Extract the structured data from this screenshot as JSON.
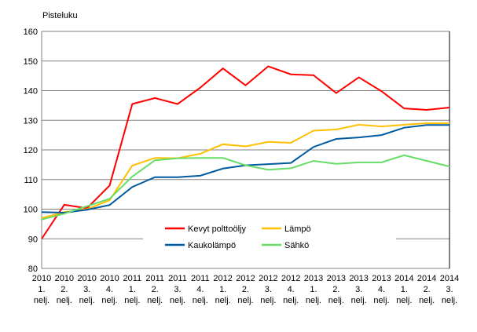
{
  "chart_data": {
    "type": "line",
    "ylabel": "Pisteluku",
    "ylim": [
      80,
      160
    ],
    "yticks": [
      80,
      90,
      100,
      110,
      120,
      130,
      140,
      150,
      160
    ],
    "grid": true,
    "legend_placement": "bottom-center",
    "categories": [
      [
        "2010",
        "1.",
        "nelj."
      ],
      [
        "2010",
        "2.",
        "nelj."
      ],
      [
        "2010",
        "3.",
        "nelj."
      ],
      [
        "2010",
        "4.",
        "nelj."
      ],
      [
        "2011",
        "1.",
        "nelj."
      ],
      [
        "2011",
        "2.",
        "nelj."
      ],
      [
        "2011",
        "3.",
        "nelj."
      ],
      [
        "2011",
        "4.",
        "nelj."
      ],
      [
        "2012",
        "1.",
        "nelj."
      ],
      [
        "2012",
        "2.",
        "nelj."
      ],
      [
        "2012",
        "3.",
        "nelj."
      ],
      [
        "2012",
        "4.",
        "nelj."
      ],
      [
        "2013",
        "1.",
        "nelj."
      ],
      [
        "2013",
        "2.",
        "nelj."
      ],
      [
        "2013",
        "3.",
        "nelj."
      ],
      [
        "2013",
        "4.",
        "nelj."
      ],
      [
        "2014",
        "1.",
        "nelj."
      ],
      [
        "2014",
        "2.",
        "nelj."
      ],
      [
        "2014",
        "3.",
        "nelj."
      ]
    ],
    "series": [
      {
        "name": "Kevyt polttoöljy",
        "color": "#ff0000",
        "values": [
          90,
          101.5,
          100.3,
          108,
          135.5,
          137.5,
          135.5,
          141,
          147.5,
          141.8,
          148.2,
          145.5,
          145.2,
          139.2,
          144.5,
          139.8,
          134,
          133.5,
          134.3
        ]
      },
      {
        "name": "Lämpö",
        "color": "#ffc000",
        "values": [
          97,
          99,
          100,
          103,
          114.7,
          117.3,
          117.2,
          118.7,
          121.9,
          121.2,
          122.7,
          122.4,
          126.5,
          126.9,
          128.5,
          127.9,
          128.5,
          129,
          129
        ]
      },
      {
        "name": "Kaukolämpö",
        "color": "#005aa0",
        "values": [
          99,
          98.8,
          99.8,
          101.4,
          107.5,
          110.8,
          110.8,
          111.3,
          113.7,
          114.8,
          115.2,
          115.6,
          121,
          123.7,
          124.2,
          125,
          127.5,
          128.4,
          128.4
        ]
      },
      {
        "name": "Sähkö",
        "color": "#66dd66",
        "values": [
          96.5,
          98.5,
          101,
          103.5,
          111,
          116.5,
          117.2,
          117.3,
          117.3,
          114.8,
          113.3,
          113.8,
          116.3,
          115.3,
          115.8,
          115.8,
          118.2,
          116.3,
          114.4
        ]
      }
    ]
  }
}
